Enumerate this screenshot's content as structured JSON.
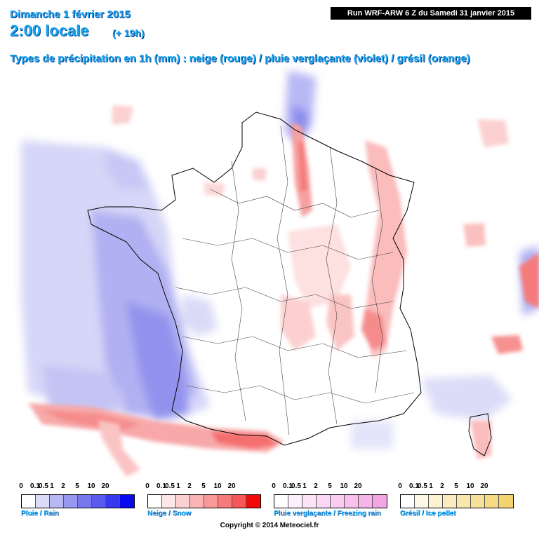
{
  "header": {
    "date": "Dimanche 1 février 2015",
    "time": "2:00 locale",
    "offset": "(+ 19h)",
    "types": "Types de précipitation en 1h (mm) : neige (rouge) / pluie verglaçante (violet) / grésil (orange)",
    "run": "Run WRF-ARW 6 Z du Samedi 31 janvier 2015"
  },
  "legend": {
    "ticks": [
      "0",
      "0.1",
      "0.5",
      "1",
      "2",
      "5",
      "10",
      "20"
    ],
    "scales": [
      {
        "label": "Pluie / Rain",
        "colors": [
          "#ffffff",
          "#dcdcf8",
          "#b8b8f4",
          "#9898f0",
          "#7878ee",
          "#5a5aee",
          "#3838ee",
          "#0a0aee"
        ]
      },
      {
        "label": "Neige / Snow",
        "colors": [
          "#ffffff",
          "#fde8e8",
          "#fcd0d0",
          "#fbb4b4",
          "#f99898",
          "#f77a7a",
          "#f55858",
          "#f20a0a"
        ]
      },
      {
        "label": "Pluie verglaçante / Freezing rain",
        "colors": [
          "#ffffff",
          "#fdf0fb",
          "#fce4f7",
          "#fbd8f4",
          "#f9ccf0",
          "#f8c0ec",
          "#f6b4e8",
          "#f4a6e4"
        ]
      },
      {
        "label": "Grésil / Ice pellet",
        "colors": [
          "#ffffff",
          "#fdf8e8",
          "#fcf2d4",
          "#fbecc0",
          "#f9e6ac",
          "#f8e098",
          "#f6da84",
          "#f4d470"
        ]
      }
    ]
  },
  "copyright": "Copyright © 2014 Meteociel.fr",
  "colors": {
    "title": "#19a7f0",
    "rain": "#7878ee",
    "snow": "#f77a7a"
  }
}
